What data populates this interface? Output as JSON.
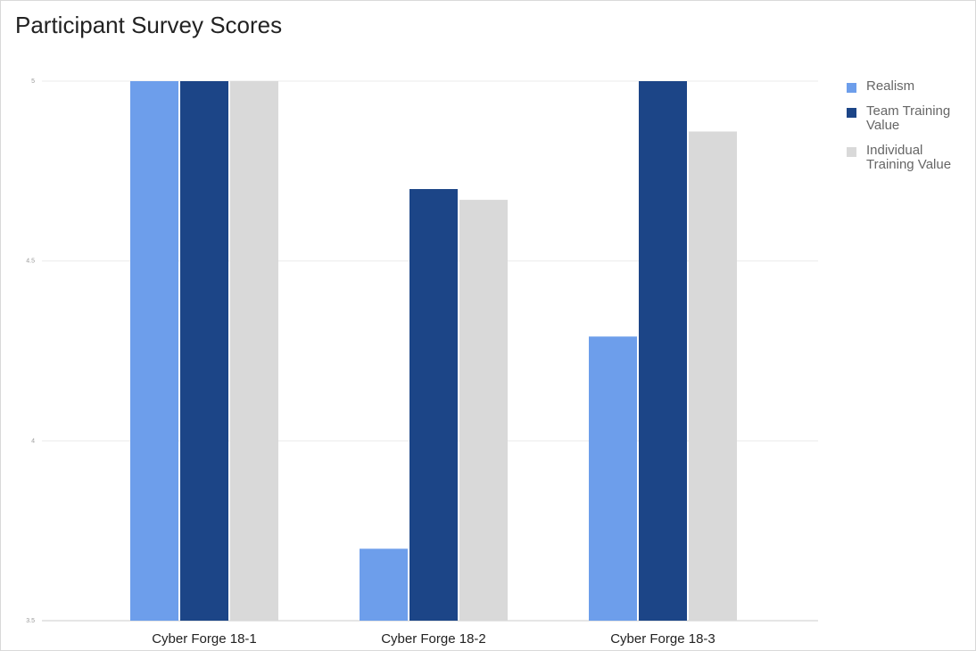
{
  "chart_data": {
    "type": "bar",
    "title": "Participant Survey Scores",
    "xlabel": "",
    "ylabel": "",
    "categories": [
      "Cyber Forge 18-1",
      "Cyber Forge 18-2",
      "Cyber Forge 18-3"
    ],
    "series": [
      {
        "name": "Realism",
        "color": "#6d9eeb",
        "values": [
          5,
          3.7,
          4.29
        ]
      },
      {
        "name": "Team Training Value",
        "color": "#1c4587",
        "values": [
          5,
          4.7,
          5
        ]
      },
      {
        "name": "Individual Training Value",
        "color": "#d9d9d9",
        "values": [
          5,
          4.67,
          4.86
        ]
      }
    ],
    "ylim": [
      3.5,
      5
    ],
    "yticks": [
      3.5,
      4,
      4.5,
      5
    ],
    "ytick_labels": [
      "3.5",
      "4",
      "4.5",
      "5"
    ],
    "grid": true,
    "legend_position": "right"
  }
}
